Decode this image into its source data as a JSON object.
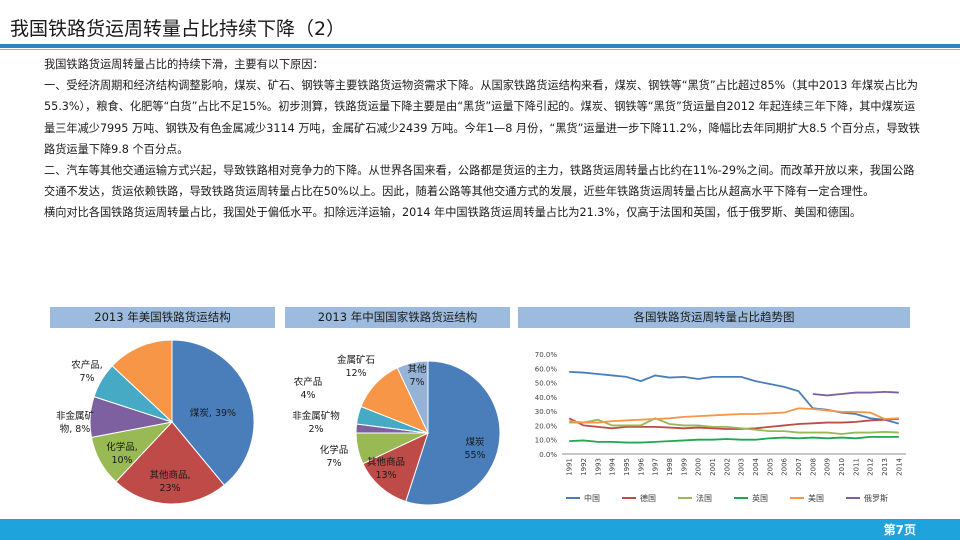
{
  "page": {
    "title": "我国铁路货运周转量占比持续下降（2）",
    "page_number": "第7页"
  },
  "body": {
    "paragraphs": [
      "我国铁路货运周转量占比的持续下滑，主要有以下原因：",
      "一、受经济周期和经济结构调整影响，煤炭、矿石、钢铁等主要铁路货运物资需求下降。从国家铁路货运结构来看，煤炭、钢铁等“黑货”占比超过85%（其中2013 年煤炭占比为55.3%），粮食、化肥等“白货”占比不足15%。初步测算，铁路货运量下降主要是由“黑货”运量下降引起的。煤炭、钢铁等“黑货”货运量自2012 年起连续三年下降，其中煤炭运量三年减少7995 万吨、钢铁及有色金属减少3114 万吨，金属矿石减少2439 万吨。今年1—8 月份，“黑货”运量进一步下降11.2%，降幅比去年同期扩大8.5 个百分点，导致铁路货运量下降9.8 个百分点。",
      "二、汽车等其他交通运输方式兴起，导致铁路相对竞争力的下降。从世界各国来看，公路都是货运的主力，铁路货运周转量占比约在11%-29%之间。而改革开放以来，我国公路交通不发达，货运依赖铁路，导致铁路货运周转量占比在50%以上。因此，随着公路等其他交通方式的发展，近些年铁路货运周转量占比从超高水平下降有一定合理性。",
      "横向对比各国铁路货运周转量占比，我国处于偏低水平。扣除远洋运输，2014 年中国铁路货运周转量占比为21.3%，仅高于法国和英国，低于俄罗斯、美国和德国。"
    ]
  },
  "chart_data": [
    {
      "type": "pie",
      "title": "2013 年美国铁路货运结构",
      "slices": [
        {
          "label": "煤炭",
          "value": 39,
          "display": "39%",
          "color": "#4a7ebb"
        },
        {
          "label": "其他商品",
          "value": 23,
          "display": "23%",
          "color": "#be4b48"
        },
        {
          "label": "化学品",
          "value": 10,
          "display": "10%",
          "color": "#98b954"
        },
        {
          "label": "非金属矿物",
          "value": 8,
          "display": "8%",
          "color": "#7d60a0"
        },
        {
          "label": "农产品",
          "value": 7,
          "display": "7%",
          "color": "#46aac5"
        },
        {
          "label": "",
          "value": 13,
          "display": "",
          "color": "#f79646"
        }
      ]
    },
    {
      "type": "pie",
      "title": "2013 年中国国家铁路货运结构",
      "slices": [
        {
          "label": "煤炭",
          "value": 55,
          "display": "55%",
          "color": "#4a7ebb"
        },
        {
          "label": "其他商品",
          "value": 13,
          "display": "13%",
          "color": "#be4b48"
        },
        {
          "label": "化学品",
          "value": 7,
          "display": "7%",
          "color": "#98b954"
        },
        {
          "label": "非金属矿物",
          "value": 2,
          "display": "2%",
          "color": "#7d60a0"
        },
        {
          "label": "农产品",
          "value": 4,
          "display": "4%",
          "color": "#46aac5"
        },
        {
          "label": "金属矿石",
          "value": 12,
          "display": "12%",
          "color": "#f79646"
        },
        {
          "label": "其他",
          "value": 7,
          "display": "7%",
          "color": "#95b3d7"
        }
      ]
    },
    {
      "type": "line",
      "title": "各国铁路货运周转量占比趋势图",
      "x": [
        "1991",
        "1992",
        "1993",
        "1994",
        "1995",
        "1996",
        "1997",
        "1998",
        "1999",
        "2000",
        "2001",
        "2002",
        "2003",
        "2004",
        "2005",
        "2006",
        "2007",
        "2008",
        "2009",
        "2010",
        "2011",
        "2012",
        "2013",
        "2014"
      ],
      "ylim": [
        0,
        70
      ],
      "yticks": [
        "0.0%",
        "10.0%",
        "20.0%",
        "30.0%",
        "40.0%",
        "50.0%",
        "60.0%",
        "70.0%"
      ],
      "legend_position": "bottom",
      "series": [
        {
          "name": "中国",
          "color": "#4a7ebb",
          "values": [
            57.5,
            57.0,
            56.0,
            55.0,
            54.0,
            51.0,
            55.0,
            53.5,
            54.0,
            52.5,
            54.0,
            54.0,
            54.0,
            51.0,
            49.0,
            47.0,
            44.0,
            32.0,
            31.0,
            29.0,
            28.0,
            25.0,
            24.0,
            21.3
          ]
        },
        {
          "name": "德国",
          "color": "#be4b48",
          "values": [
            25.0,
            20.0,
            19.0,
            18.0,
            19.0,
            19.0,
            19.0,
            18.5,
            18.0,
            18.5,
            18.0,
            17.5,
            17.5,
            18.0,
            19.0,
            20.0,
            21.0,
            21.5,
            22.0,
            22.0,
            22.5,
            23.5,
            24.0,
            24.5
          ]
        },
        {
          "name": "法国",
          "color": "#98b954",
          "values": [
            22.0,
            22.0,
            24.0,
            20.0,
            20.0,
            20.0,
            25.0,
            21.0,
            20.0,
            20.0,
            19.0,
            19.0,
            18.0,
            17.0,
            16.0,
            16.0,
            15.0,
            15.0,
            15.0,
            14.0,
            15.0,
            15.0,
            15.5,
            15.0
          ]
        },
        {
          "name": "英国",
          "color": "#1fa84f",
          "values": [
            9.0,
            9.5,
            8.5,
            8.5,
            8.0,
            8.0,
            8.5,
            9.0,
            9.5,
            10.0,
            10.0,
            10.5,
            10.0,
            10.0,
            11.0,
            11.5,
            11.0,
            11.5,
            11.0,
            11.5,
            11.0,
            12.0,
            12.0,
            12.0
          ]
        },
        {
          "name": "美国",
          "color": "#f79646",
          "values": [
            23.0,
            22.0,
            22.0,
            23.0,
            23.5,
            24.0,
            24.5,
            25.0,
            26.0,
            26.5,
            27.0,
            27.5,
            28.0,
            28.0,
            28.5,
            29.0,
            32.0,
            31.5,
            30.5,
            29.5,
            29.5,
            29.0,
            24.5,
            25.0
          ]
        },
        {
          "name": "俄罗斯",
          "color": "#7d60a0",
          "values": [
            null,
            null,
            null,
            null,
            null,
            null,
            null,
            null,
            null,
            null,
            null,
            null,
            null,
            null,
            null,
            null,
            null,
            42.0,
            41.0,
            42.0,
            43.0,
            43.0,
            43.5,
            43.0
          ]
        }
      ]
    }
  ]
}
